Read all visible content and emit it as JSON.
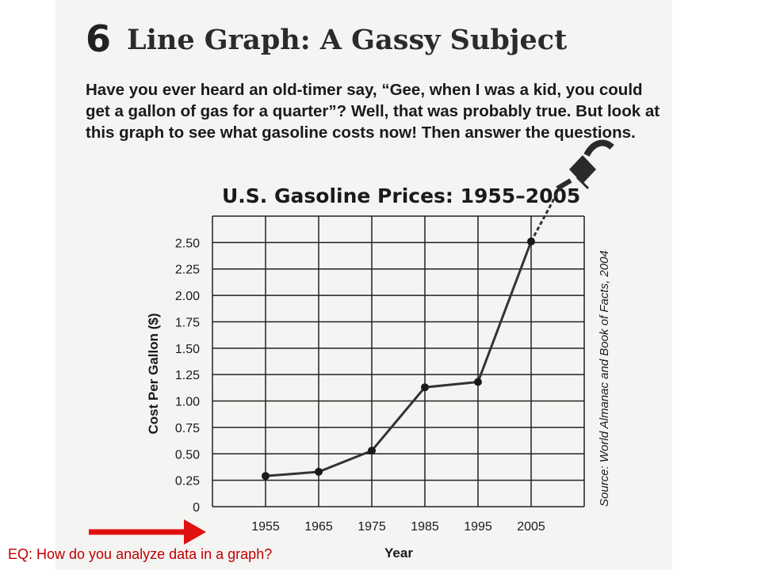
{
  "worksheet": {
    "number": "6",
    "title": "Line Graph: A Gassy Subject",
    "intro_lines": [
      "Have you ever heard an old-timer say, “Gee, when I was a kid, you could",
      "get a gallon of gas for a quarter”? Well, that was probably true. But look at",
      "this graph to see what gasoline costs now! Then answer the questions."
    ]
  },
  "chart_data": {
    "type": "line",
    "title": "U.S. Gasoline Prices: 1955–2005",
    "xlabel": "Year",
    "ylabel": "Cost Per Gallon ($)",
    "x": [
      1955,
      1965,
      1975,
      1985,
      1995,
      2005
    ],
    "series": [
      {
        "values": [
          0.29,
          0.33,
          0.53,
          1.13,
          1.18,
          2.51
        ]
      }
    ],
    "y_ticks": [
      "0",
      "0.25",
      "0.50",
      "0.75",
      "1.00",
      "1.25",
      "1.50",
      "1.75",
      "2.00",
      "2.25",
      "2.50"
    ],
    "x_ticks": [
      "1955",
      "1965",
      "1975",
      "1985",
      "1995",
      "2005"
    ],
    "ylim": [
      0,
      2.75
    ],
    "xlim": [
      1945,
      2015
    ],
    "grid": true,
    "source": "Source: World Almanac and Book of Facts, 2004",
    "line_color": "#333333",
    "grid_color": "#222222"
  },
  "annotation": {
    "eq_text": "EQ:  How do you analyze data in a graph?",
    "color": "#e01010"
  }
}
